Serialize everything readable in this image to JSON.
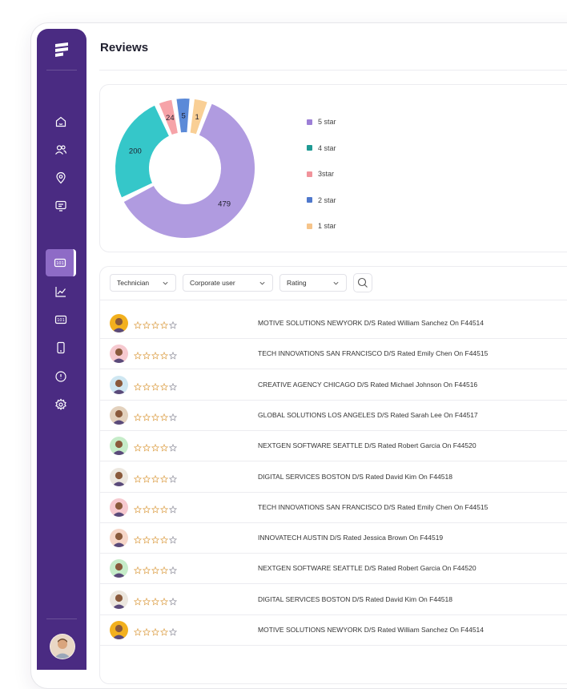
{
  "page": {
    "title": "Reviews"
  },
  "sidebar": {
    "items": [
      {
        "icon": "home-icon"
      },
      {
        "icon": "users-icon"
      },
      {
        "icon": "location-pin-icon"
      },
      {
        "icon": "message-screen-icon"
      },
      {
        "icon": "ratings-ticket-icon",
        "active": true
      },
      {
        "icon": "analytics-chart-icon"
      },
      {
        "icon": "ticket-icon"
      },
      {
        "icon": "mobile-device-icon"
      },
      {
        "icon": "info-icon"
      },
      {
        "icon": "settings-gear-icon"
      }
    ]
  },
  "chart_data": {
    "type": "pie",
    "variant": "donut",
    "slices": [
      {
        "label": "5 star",
        "value": 479,
        "color": "#b09be0"
      },
      {
        "label": "4 star",
        "value": 200,
        "color": "#35c7c9"
      },
      {
        "label": "3star",
        "value": 24,
        "color": "#f6a3a8"
      },
      {
        "label": "2 star",
        "value": 5,
        "color": "#5b8ad8"
      },
      {
        "label": "1 star",
        "value": 1,
        "color": "#f9cf95"
      }
    ],
    "legend": [
      {
        "label": "5 star",
        "color": "#9c7fd6"
      },
      {
        "label": "4 star",
        "color": "#1f9a94"
      },
      {
        "label": "3star",
        "color": "#f1939b"
      },
      {
        "label": "2 star",
        "color": "#4f78cc"
      },
      {
        "label": "1 star",
        "color": "#f6c48a"
      }
    ],
    "legend_position": "right"
  },
  "filters": {
    "technician": "Technician",
    "corporate_user": "Corporate user",
    "rating": "Rating"
  },
  "reviews": [
    {
      "text": "MOTIVE SOLUTIONS NEWYORK D/S Rated William Sanchez On F44514",
      "avatar": "#f2b01e"
    },
    {
      "text": "TECH INNOVATIONS SAN FRANCISCO D/S Rated Emily Chen On F44515",
      "avatar": "#f6c9cf"
    },
    {
      "text": "CREATIVE AGENCY CHICAGO D/S Rated Michael Johnson On F44516",
      "avatar": "#cfe7f2"
    },
    {
      "text": "GLOBAL SOLUTIONS LOS ANGELES D/S Rated Sarah Lee On F44517",
      "avatar": "#e3d1bd"
    },
    {
      "text": "NEXTGEN SOFTWARE SEATTLE D/S Rated Robert Garcia On F44520",
      "avatar": "#c6ecc9"
    },
    {
      "text": "DIGITAL SERVICES BOSTON D/S Rated David Kim On F44518",
      "avatar": "#ece7df"
    },
    {
      "text": "TECH INNOVATIONS SAN FRANCISCO D/S Rated Emily Chen On F44515",
      "avatar": "#f6c9cf"
    },
    {
      "text": "INNOVATECH AUSTIN D/S Rated Jessica Brown On F44519",
      "avatar": "#f6d6c8"
    },
    {
      "text": "NEXTGEN SOFTWARE SEATTLE D/S Rated Robert Garcia On F44520",
      "avatar": "#c6ecc9"
    },
    {
      "text": "DIGITAL SERVICES BOSTON D/S Rated David Kim On F44518",
      "avatar": "#ece7df"
    },
    {
      "text": "MOTIVE SOLUTIONS NEWYORK D/S Rated William Sanchez On F44514",
      "avatar": "#f2b01e"
    }
  ],
  "colors": {
    "sidebar": "#4a2b82",
    "sidebar_active": "#8e6bc6",
    "star_outline": "#e0a95a"
  }
}
